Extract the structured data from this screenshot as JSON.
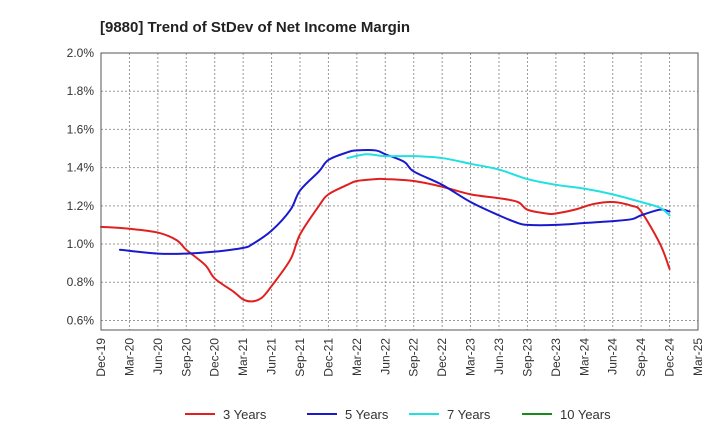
{
  "chart_data": {
    "type": "line",
    "title": "[9880]  Trend of StDev of Net Income Margin",
    "xlabel": "",
    "ylabel": "",
    "x_ticks": [
      "Dec-19",
      "Mar-20",
      "Jun-20",
      "Sep-20",
      "Dec-20",
      "Mar-21",
      "Jun-21",
      "Sep-21",
      "Dec-21",
      "Mar-22",
      "Jun-22",
      "Sep-22",
      "Dec-22",
      "Mar-23",
      "Jun-23",
      "Sep-23",
      "Dec-23",
      "Mar-24",
      "Jun-24",
      "Sep-24",
      "Dec-24",
      "Mar-25"
    ],
    "y_ticks": [
      "0.6%",
      "0.8%",
      "1.0%",
      "1.2%",
      "1.4%",
      "1.6%",
      "1.8%",
      "2.0%"
    ],
    "y_tick_values": [
      0.6,
      0.8,
      1.0,
      1.2,
      1.4,
      1.6,
      1.8,
      2.0
    ],
    "ylim": [
      0.55,
      2.0
    ],
    "grid": true,
    "legend_position": "bottom",
    "series": [
      {
        "name": "3 Years",
        "color": "#e02020",
        "x": [
          "Dec-19",
          "Mar-20",
          "Jun-20",
          "Aug-20",
          "Sep-20",
          "Nov-20",
          "Dec-20",
          "Feb-21",
          "Mar-21",
          "Apr-21",
          "May-21",
          "Jun-21",
          "Aug-21",
          "Sep-21",
          "Nov-21",
          "Dec-21",
          "Feb-22",
          "Mar-22",
          "May-22",
          "Jun-22",
          "Sep-22",
          "Dec-22",
          "Mar-23",
          "Jun-23",
          "Aug-23",
          "Sep-23",
          "Nov-23",
          "Dec-23",
          "Feb-24",
          "Apr-24",
          "Jun-24",
          "Aug-24",
          "Sep-24",
          "Nov-24",
          "Dec-24"
        ],
        "values": [
          1.09,
          1.08,
          1.06,
          1.02,
          0.97,
          0.89,
          0.82,
          0.75,
          0.71,
          0.7,
          0.72,
          0.78,
          0.92,
          1.05,
          1.2,
          1.26,
          1.31,
          1.33,
          1.34,
          1.34,
          1.33,
          1.3,
          1.26,
          1.24,
          1.22,
          1.18,
          1.16,
          1.16,
          1.18,
          1.21,
          1.22,
          1.2,
          1.17,
          1.0,
          0.87
        ]
      },
      {
        "name": "5 Years",
        "color": "#1a1acc",
        "x": [
          "Feb-20",
          "Jun-20",
          "Sep-20",
          "Dec-20",
          "Mar-21",
          "Apr-21",
          "Jun-21",
          "Aug-21",
          "Sep-21",
          "Nov-21",
          "Dec-21",
          "Feb-22",
          "Mar-22",
          "May-22",
          "Jun-22",
          "Aug-22",
          "Sep-22",
          "Dec-22",
          "Mar-23",
          "Jun-23",
          "Aug-23",
          "Sep-23",
          "Dec-23",
          "Mar-24",
          "Jun-24",
          "Aug-24",
          "Sep-24",
          "Nov-24",
          "Dec-24"
        ],
        "values": [
          0.97,
          0.95,
          0.95,
          0.96,
          0.98,
          1.0,
          1.07,
          1.18,
          1.28,
          1.38,
          1.44,
          1.48,
          1.49,
          1.49,
          1.47,
          1.43,
          1.38,
          1.31,
          1.22,
          1.15,
          1.11,
          1.1,
          1.1,
          1.11,
          1.12,
          1.13,
          1.15,
          1.18,
          1.17
        ]
      },
      {
        "name": "7 Years",
        "color": "#22e0e0",
        "x": [
          "Feb-22",
          "Apr-22",
          "Jun-22",
          "Sep-22",
          "Dec-22",
          "Mar-23",
          "Jun-23",
          "Sep-23",
          "Dec-23",
          "Mar-24",
          "Jun-24",
          "Sep-24",
          "Nov-24",
          "Dec-24"
        ],
        "values": [
          1.45,
          1.47,
          1.46,
          1.46,
          1.45,
          1.42,
          1.39,
          1.34,
          1.31,
          1.29,
          1.26,
          1.22,
          1.19,
          1.15
        ]
      },
      {
        "name": "10 Years",
        "color": "#1a8a1a",
        "x": [],
        "values": []
      }
    ]
  }
}
